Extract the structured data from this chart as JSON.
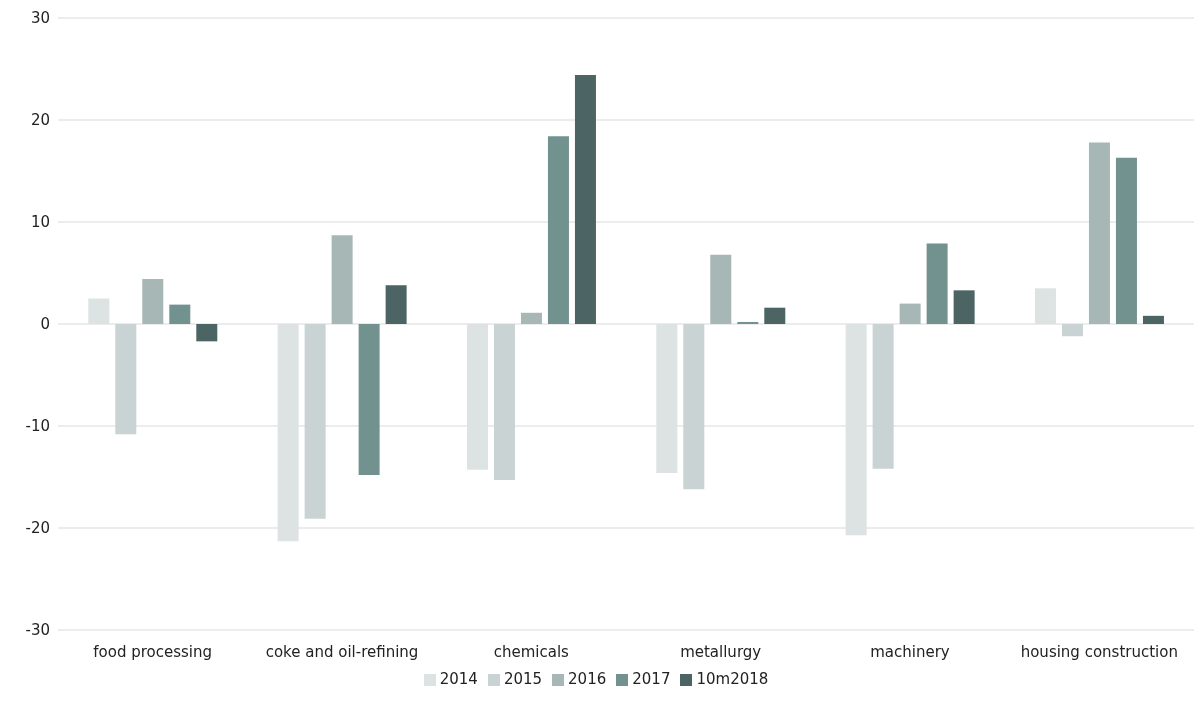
{
  "chart_data": {
    "type": "bar",
    "categories": [
      "food processing",
      "coke and oil-refining",
      "chemicals",
      "metallurgy",
      "machinery",
      "housing construction"
    ],
    "series": [
      {
        "name": "2014",
        "color": "#dde3e3",
        "values": [
          2.5,
          -21.3,
          -14.3,
          -14.6,
          -20.7,
          3.5
        ]
      },
      {
        "name": "2015",
        "color": "#c9d3d3",
        "values": [
          -10.8,
          -19.1,
          -15.3,
          -16.2,
          -14.2,
          -1.2
        ]
      },
      {
        "name": "2016",
        "color": "#a6b7b5",
        "values": [
          4.4,
          8.7,
          1.1,
          6.8,
          2.0,
          17.8
        ]
      },
      {
        "name": "2017",
        "color": "#72928f",
        "values": [
          1.9,
          -14.8,
          18.4,
          0.2,
          7.9,
          16.3
        ]
      },
      {
        "name": "10m2018",
        "color": "#4d6465",
        "values": [
          -1.7,
          3.8,
          24.4,
          1.6,
          3.3,
          0.8
        ]
      }
    ],
    "ylim": [
      -30,
      30
    ],
    "yticks": [
      -30,
      -20,
      -10,
      0,
      10,
      20,
      30
    ],
    "grid": "y",
    "legend": "bottom"
  }
}
